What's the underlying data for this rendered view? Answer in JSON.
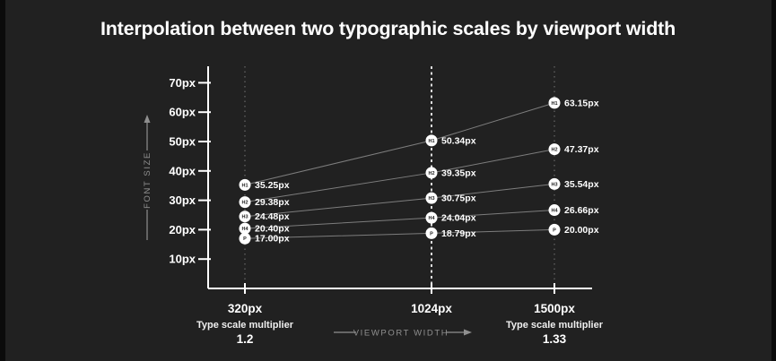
{
  "title": "Interpolation between two typographic scales by viewport width",
  "chart_data": {
    "type": "line",
    "title": "Interpolation between two typographic scales by viewport width",
    "xlabel": "VIEWPORT WIDTH",
    "ylabel": "FONT SIZE",
    "x_categories": [
      "320px",
      "1024px",
      "1500px"
    ],
    "x_values": [
      320,
      1024,
      1500
    ],
    "y_tick_labels": [
      "70px",
      "60px",
      "50px",
      "40px",
      "30px",
      "20px",
      "10px"
    ],
    "y_tick_values": [
      70,
      60,
      50,
      40,
      30,
      20,
      10
    ],
    "ylim": [
      0,
      75
    ],
    "grid": "dashed vertical guide at each x category, center guide brighter",
    "legend": "inline circular badges on each data point",
    "series": [
      {
        "name": "H1",
        "values": [
          35.25,
          50.34,
          63.15
        ],
        "point_labels": [
          "35.25px",
          "50.34px",
          "63.15px"
        ]
      },
      {
        "name": "H2",
        "values": [
          29.38,
          39.35,
          47.37
        ],
        "point_labels": [
          "29.38px",
          "39.35px",
          "47.37px"
        ]
      },
      {
        "name": "H3",
        "values": [
          24.48,
          30.75,
          35.54
        ],
        "point_labels": [
          "24.48px",
          "30.75px",
          "35.54px"
        ]
      },
      {
        "name": "H4",
        "values": [
          20.4,
          24.04,
          26.66
        ],
        "point_labels": [
          "20.40px",
          "24.04px",
          "26.66px"
        ]
      },
      {
        "name": "P",
        "values": [
          17.0,
          18.79,
          20.0
        ],
        "point_labels": [
          "17.00px",
          "18.79px",
          "20.00px"
        ]
      }
    ],
    "annotations": {
      "left_multiplier": {
        "label": "Type scale multiplier",
        "value": "1.2"
      },
      "right_multiplier": {
        "label": "Type scale multiplier",
        "value": "1.33"
      }
    }
  },
  "colors": {
    "background": "#212121",
    "edge": "#0b0b0b",
    "axis": "#ffffff",
    "text_primary": "#ffffff",
    "text_muted": "#8f8f8f",
    "series_line": "#7d7d7d",
    "guide_outer": "#696969",
    "guide_center": "#efefef",
    "badge_fill": "#ffffff",
    "badge_text": "#1f1f1f"
  }
}
